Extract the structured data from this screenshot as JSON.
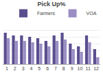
{
  "chart_data": {
    "type": "bar",
    "title": "Pick Up%",
    "categories": [
      "1",
      "2",
      "3",
      "4",
      "5",
      "6",
      "7",
      "8",
      "9",
      "10",
      "11",
      "12"
    ],
    "series": [
      {
        "name": "Farmers",
        "color": "#5b4e8e",
        "values": [
          0.83,
          0.81,
          0.81,
          0.8,
          0.79,
          0.77,
          0.81,
          0.83,
          0.75,
          0.73,
          0.81,
          0.71
        ]
      },
      {
        "name": "VOA",
        "color": "#9b8ec4",
        "values": [
          0.79,
          0.77,
          0.77,
          0.76,
          0.75,
          0.73,
          0.77,
          0.78,
          0.71,
          0.69,
          0.76,
          0.65
        ]
      }
    ],
    "ylim": [
      0.6,
      0.9
    ],
    "yticks": [
      0.6,
      0.65,
      0.7,
      0.75,
      0.8,
      0.85,
      0.9
    ],
    "grid": true,
    "legend": "upper right",
    "tick_labels": "x"
  }
}
